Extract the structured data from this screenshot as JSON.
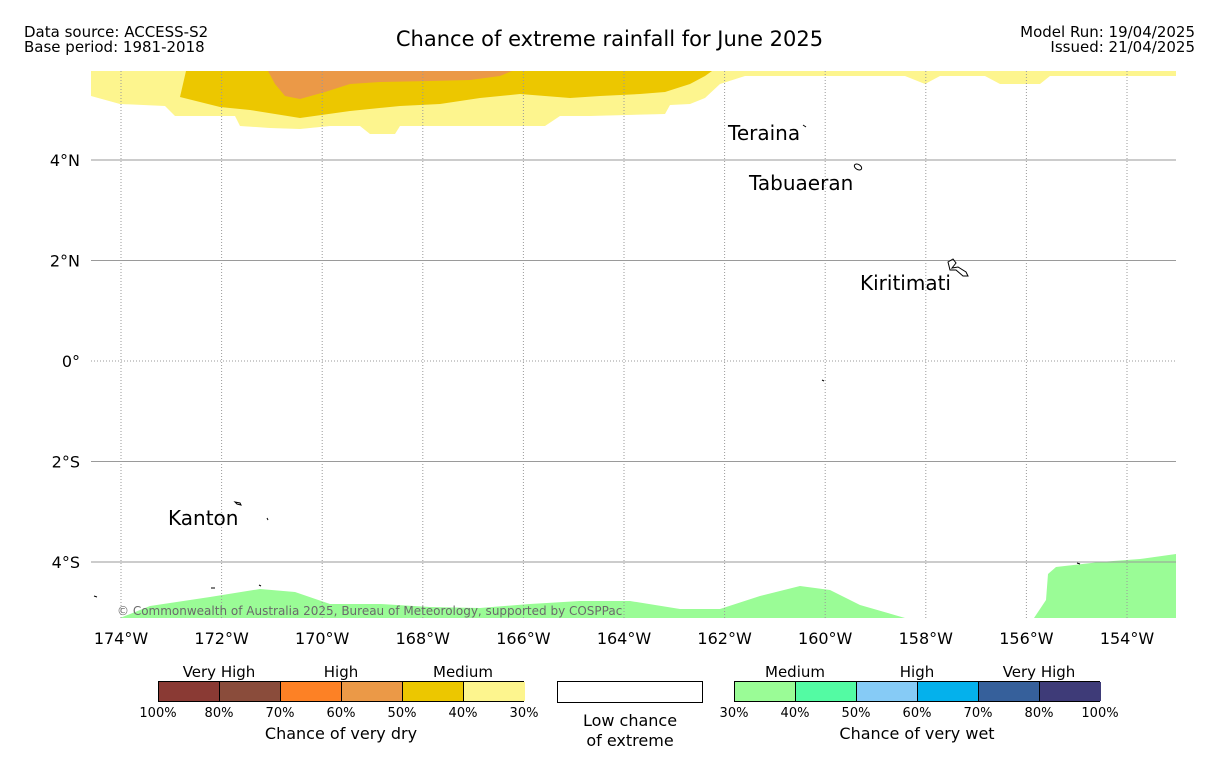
{
  "header": {
    "data_source": "Data source: ACCESS-S2",
    "base_period": "Base period: 1981-2018",
    "title": "Chance of extreme rainfall for June 2025",
    "model_run": "Model Run: 19/04/2025",
    "issued": "Issued: 21/04/2025"
  },
  "map": {
    "lon_labels": [
      "174°W",
      "172°W",
      "170°W",
      "168°W",
      "166°W",
      "164°W",
      "162°W",
      "160°W",
      "158°W",
      "156°W",
      "154°W"
    ],
    "lat_labels": [
      "4°N",
      "2°N",
      "0°",
      "2°S",
      "4°S"
    ],
    "places": [
      "Teraina",
      "Tabuaeran",
      "Kiritimati",
      "Kanton"
    ],
    "copyright": "© Commonwealth of Australia 2025, Bureau of Meteorology, supported by COSPPac",
    "colors": {
      "dry_30_40": "#fdf58e",
      "dry_40_50": "#ecc700",
      "dry_50_60": "#eb9947",
      "wet_30_40": "#9afc96",
      "grid": "#9a9a9a"
    }
  },
  "legend": {
    "dry": {
      "title": "Chance of very dry",
      "levels": [
        "Very High",
        "High",
        "Medium"
      ],
      "colors": [
        "#8a3a34",
        "#8a4c3b",
        "#fd8125",
        "#eb9947",
        "#ecc700",
        "#fdf58e"
      ],
      "ticks": [
        "100%",
        "80%",
        "70%",
        "60%",
        "50%",
        "40%",
        "30%"
      ]
    },
    "low": {
      "line1": "Low chance",
      "line2": "of extreme"
    },
    "wet": {
      "title": "Chance of very wet",
      "levels": [
        "Medium",
        "High",
        "Very High"
      ],
      "colors": [
        "#9afc96",
        "#53fba3",
        "#86cbf6",
        "#04b1ec",
        "#36609b",
        "#3e3b78"
      ],
      "ticks": [
        "30%",
        "40%",
        "50%",
        "60%",
        "70%",
        "80%",
        "100%"
      ]
    }
  }
}
